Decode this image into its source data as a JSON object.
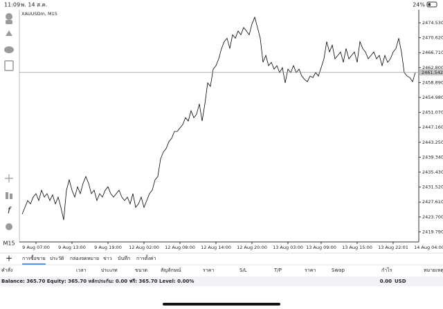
{
  "status_bar": {
    "time": "11:09",
    "date": "พ. 14 ส.ค.",
    "battery": "24%"
  },
  "toolbar": {
    "timeframe": "M15"
  },
  "chart_data": {
    "type": "line",
    "title": "XAUUSDm, M15",
    "color": "#000000",
    "values": [
      2424.4,
      2426.2,
      2428.0,
      2427.1,
      2428.9,
      2429.8,
      2428.0,
      2430.7,
      2428.9,
      2429.8,
      2428.0,
      2429.5,
      2427.1,
      2428.9,
      2426.2,
      2422.9,
      2430.7,
      2433.4,
      2430.7,
      2428.9,
      2431.6,
      2429.8,
      2432.5,
      2434.3,
      2432.5,
      2429.8,
      2430.7,
      2428.0,
      2429.8,
      2428.9,
      2430.7,
      2431.6,
      2429.8,
      2428.9,
      2429.8,
      2430.7,
      2428.9,
      2428.0,
      2428.9,
      2427.1,
      2429.8,
      2426.2,
      2427.1,
      2428.9,
      2426.2,
      2428.0,
      2429.8,
      2430.7,
      2433.4,
      2434.3,
      2438.9,
      2440.7,
      2441.6,
      2443.4,
      2444.3,
      2446.1,
      2446.1,
      2447.0,
      2447.9,
      2449.7,
      2448.8,
      2451.5,
      2449.7,
      2450.6,
      2453.3,
      2448.8,
      2453.3,
      2458.8,
      2457.9,
      2462.4,
      2463.3,
      2465.1,
      2467.8,
      2469.6,
      2470.5,
      2467.8,
      2471.4,
      2470.5,
      2472.4,
      2471.4,
      2473.3,
      2472.4,
      2471.4,
      2474.2,
      2476.0,
      2473.3,
      2470.5,
      2464.2,
      2466.0,
      2463.3,
      2464.2,
      2462.4,
      2463.3,
      2461.5,
      2462.8,
      2458.8,
      2462.4,
      2461.5,
      2463.3,
      2461.5,
      2462.4,
      2460.6,
      2459.7,
      2459.1,
      2460.6,
      2460.2,
      2461.5,
      2460.6,
      2462.8,
      2465.1,
      2469.6,
      2466.9,
      2468.7,
      2465.1,
      2466.0,
      2466.9,
      2464.2,
      2467.8,
      2465.1,
      2466.0,
      2466.9,
      2464.2,
      2469.6,
      2467.8,
      2466.9,
      2465.1,
      2466.0,
      2466.9,
      2465.1,
      2466.0,
      2463.3,
      2466.0,
      2464.2,
      2465.1,
      2466.9,
      2467.8,
      2470.5,
      2466.9,
      2461.5,
      2460.6,
      2460.2,
      2459.1,
      2461.5
    ],
    "ylim": [
      2417.15,
      2477.97
    ],
    "yticks": [
      {
        "value": 2474.53,
        "label": "2474.530"
      },
      {
        "value": 2470.62,
        "label": "2470.620"
      },
      {
        "value": 2466.71,
        "label": "2466.710"
      },
      {
        "value": 2462.8,
        "label": "2462.800"
      },
      {
        "value": 2458.89,
        "label": "2458.890"
      },
      {
        "value": 2454.98,
        "label": "2454.980"
      },
      {
        "value": 2451.07,
        "label": "2451.070"
      },
      {
        "value": 2447.16,
        "label": "2447.160"
      },
      {
        "value": 2443.25,
        "label": "2443.250"
      },
      {
        "value": 2439.34,
        "label": "2439.340"
      },
      {
        "value": 2435.43,
        "label": "2435.430"
      },
      {
        "value": 2431.52,
        "label": "2431.520"
      },
      {
        "value": 2427.61,
        "label": "2427.610"
      },
      {
        "value": 2423.7,
        "label": "2423.700"
      },
      {
        "value": 2419.79,
        "label": "2419.790"
      }
    ],
    "xlim": [
      -1,
      143
    ],
    "xticks": [
      {
        "value": 5,
        "label": "9 Aug 07:00"
      },
      {
        "value": 18,
        "label": "9 Aug 13:00"
      },
      {
        "value": 31,
        "label": "9 Aug 19:00"
      },
      {
        "value": 44,
        "label": "12 Aug 02:00"
      },
      {
        "value": 57,
        "label": "12 Aug 08:00"
      },
      {
        "value": 70,
        "label": "12 Aug 14:00"
      },
      {
        "value": 83,
        "label": "12 Aug 20:00"
      },
      {
        "value": 96,
        "label": "13 Aug 03:00"
      },
      {
        "value": 108,
        "label": "13 Aug 09:00"
      },
      {
        "value": 121,
        "label": "13 Aug 15:00"
      },
      {
        "value": 134,
        "label": "13 Aug 22:01"
      },
      {
        "value": 147,
        "label": "14 Aug 04:00"
      }
    ],
    "current_price": 2461.542
  },
  "terminal": {
    "tabs": [
      "การซื้อขาย",
      "ประวัติ",
      "กล่องจดหมาย",
      "ข่าว",
      "บันทึก",
      "การตั้งค่า"
    ],
    "active_tab": 0,
    "columns": [
      "คำสั่ง",
      "เวลา",
      "ประเภท",
      "ขนาด",
      "สัญลักษณ์",
      "ราคา",
      "S/L",
      "T/P",
      "ราคา",
      "Swap",
      "กำไร",
      "หมายเหตุ"
    ],
    "balance": "Balance: 365.70 Equity: 365.70 หลักประกัน: 0.00 ฟรี: 365.70 Level: 0.00%",
    "total": "0.00",
    "currency": "USD"
  }
}
